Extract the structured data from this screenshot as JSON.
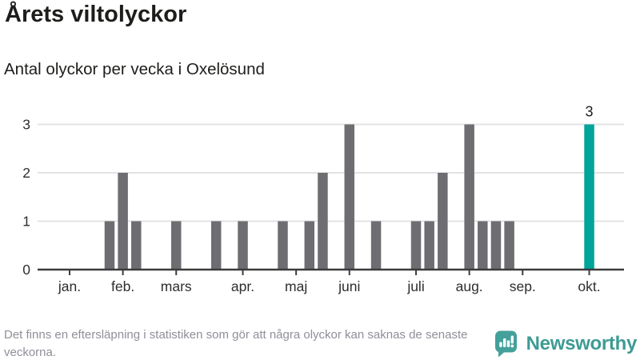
{
  "header": {
    "title": "Årets viltolyckor",
    "subtitle": "Antal olyckor per vecka i Oxelösund"
  },
  "chart_data": {
    "type": "bar",
    "title": "Årets viltolyckor",
    "subtitle": "Antal olyckor per vecka i Oxelösund",
    "x_unit": "week",
    "first_week": 1,
    "values_by_week": [
      0,
      0,
      0,
      1,
      2,
      1,
      0,
      0,
      1,
      0,
      0,
      1,
      0,
      1,
      0,
      0,
      1,
      0,
      1,
      2,
      0,
      3,
      0,
      1,
      0,
      0,
      1,
      1,
      2,
      0,
      3,
      1,
      1,
      1,
      0,
      0,
      0,
      0,
      0,
      3,
      0,
      0
    ],
    "month_ticks": [
      {
        "label": "jan.",
        "week": 1
      },
      {
        "label": "feb.",
        "week": 5
      },
      {
        "label": "mars",
        "week": 9
      },
      {
        "label": "apr.",
        "week": 14
      },
      {
        "label": "maj",
        "week": 18
      },
      {
        "label": "juni",
        "week": 22
      },
      {
        "label": "juli",
        "week": 27
      },
      {
        "label": "aug.",
        "week": 31
      },
      {
        "label": "sep.",
        "week": 35
      },
      {
        "label": "okt.",
        "week": 40
      }
    ],
    "yticks": [
      0,
      1,
      2,
      3
    ],
    "ylim": [
      0,
      3
    ],
    "grid": "horizontal",
    "highlight": {
      "week": 40,
      "value": 3,
      "data_label": "3"
    },
    "legend": null
  },
  "colors": {
    "bar": "#6e6d72",
    "highlight": "#00a49b",
    "grid": "#e3e3e3",
    "axis": "#3c3c3c",
    "text_dark": "#1d1d1b",
    "footnote": "#8f8f98",
    "brand_teal": "#3e9b94"
  },
  "footer": {
    "note": "Det finns en eftersläpning i statistiken som gör att några olyckor kan saknas de senaste veckorna.",
    "brand": "Newsworthy"
  }
}
